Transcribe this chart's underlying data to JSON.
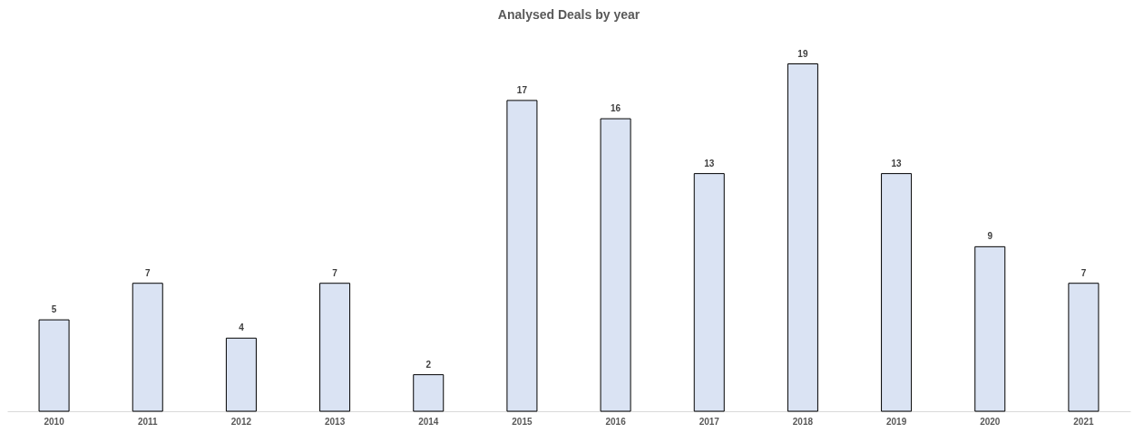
{
  "chart_data": {
    "type": "bar",
    "title": "Analysed Deals by year",
    "categories": [
      "2010",
      "2011",
      "2012",
      "2013",
      "2014",
      "2015",
      "2016",
      "2017",
      "2018",
      "2019",
      "2020",
      "2021"
    ],
    "values": [
      5,
      7,
      4,
      7,
      2,
      17,
      16,
      13,
      19,
      13,
      9,
      7
    ],
    "color": "#dae3f3",
    "data_labels": true,
    "grid": false
  }
}
